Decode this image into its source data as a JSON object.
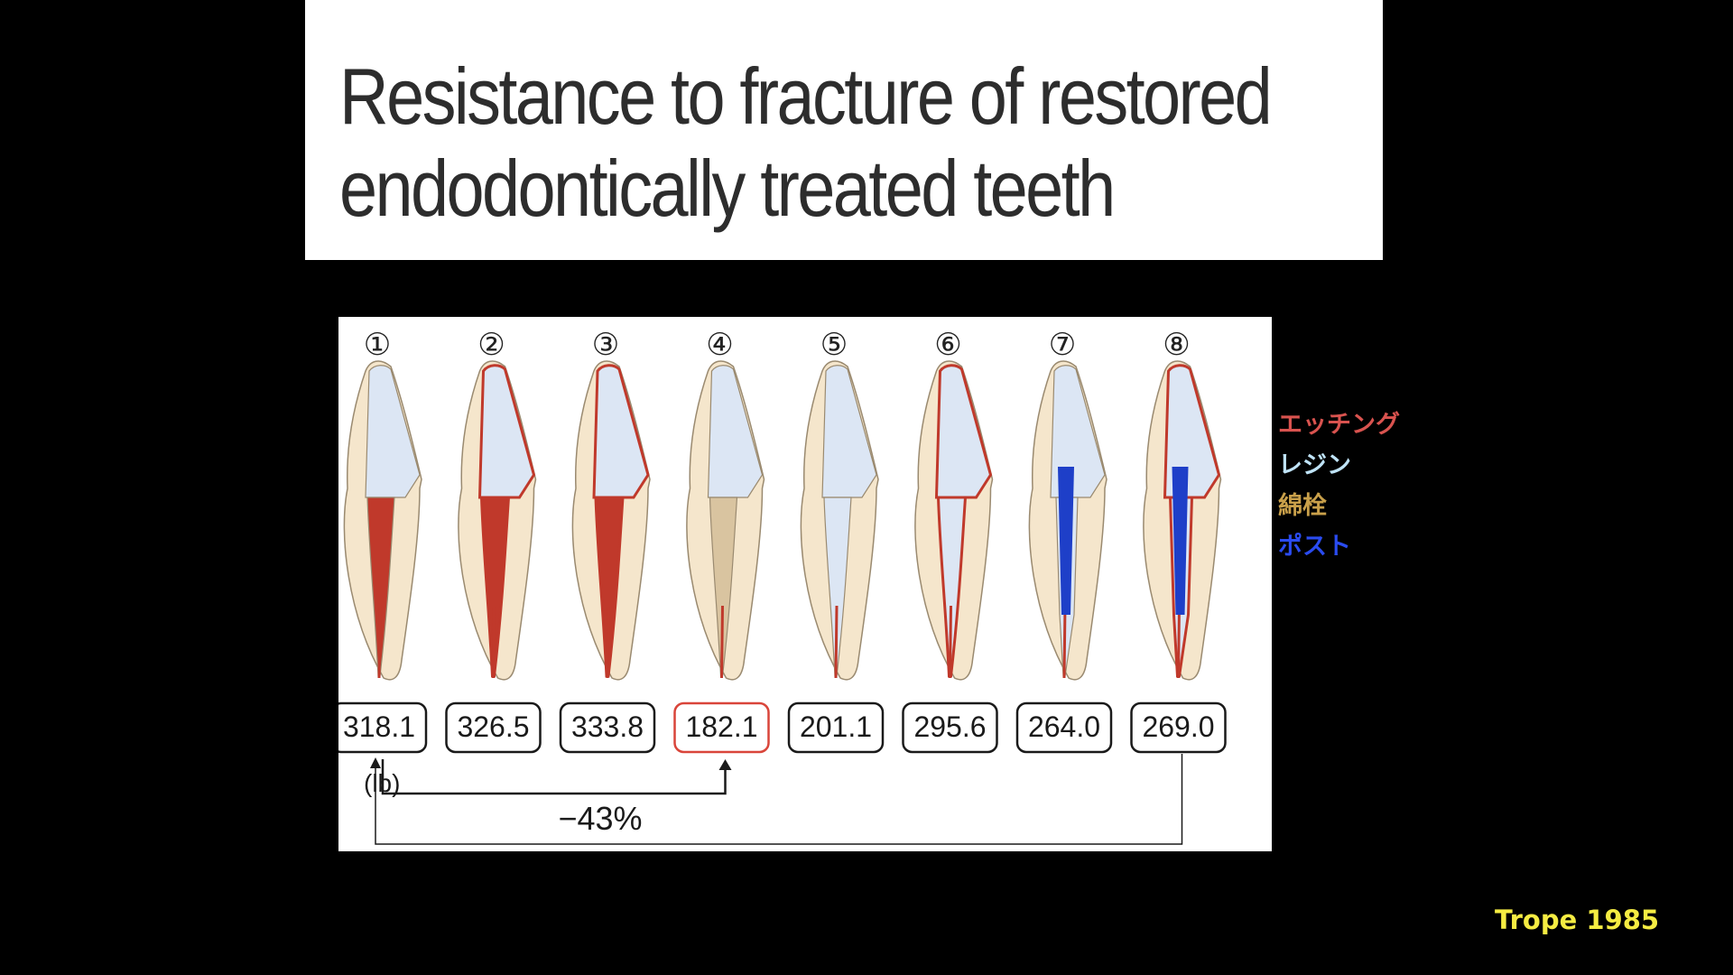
{
  "title": {
    "line1": "Resistance to fracture of restored",
    "line2": "endodontically treated teeth"
  },
  "figure": {
    "teeth": [
      {
        "number": "①",
        "value": "318.1",
        "highlight": false,
        "crown": "#dce6f4",
        "root": "#c0392b",
        "outline": false,
        "cotton": false,
        "post": false
      },
      {
        "number": "②",
        "value": "326.5",
        "highlight": false,
        "crown": "#dce6f4",
        "root": "#c0392b",
        "outline": true,
        "cotton": false,
        "post": false
      },
      {
        "number": "③",
        "value": "333.8",
        "highlight": false,
        "crown": "#dce6f4",
        "root": "#c0392b",
        "outline": true,
        "cotton": false,
        "post": false
      },
      {
        "number": "④",
        "value": "182.1",
        "highlight": true,
        "crown": "#dce6f4",
        "root": "#d9c4a0",
        "outline": false,
        "cotton": true,
        "post": false
      },
      {
        "number": "⑤",
        "value": "201.1",
        "highlight": false,
        "crown": "#dce6f4",
        "root": "#dce6f4",
        "outline": false,
        "cotton": false,
        "post": false
      },
      {
        "number": "⑥",
        "value": "295.6",
        "highlight": false,
        "crown": "#dce6f4",
        "root": "#dce6f4",
        "outline": true,
        "cotton": false,
        "post": false
      },
      {
        "number": "⑦",
        "value": "264.0",
        "highlight": false,
        "crown": "#dce6f4",
        "root": "#dce6f4",
        "outline": false,
        "cotton": false,
        "post": true
      },
      {
        "number": "⑧",
        "value": "269.0",
        "highlight": false,
        "crown": "#dce6f4",
        "root": "#dce6f4",
        "outline": true,
        "cotton": false,
        "post": true
      }
    ],
    "unit_label": "(lb)",
    "comparison_label": "−43%",
    "colors": {
      "dentin": "#f5e6cc",
      "dentin_edge": "#9a8a70",
      "red": "#c0392b",
      "post": "#1e3fc8",
      "highlight_border": "#d9453a"
    }
  },
  "legend": [
    {
      "label": "エッチング",
      "color": "#d9534f"
    },
    {
      "label": "レジン",
      "color": "#bfe3f7"
    },
    {
      "label": "綿栓",
      "color": "#c9a04a"
    },
    {
      "label": "ポスト",
      "color": "#2a4bf0"
    }
  ],
  "citation": {
    "text": "Trope 1985",
    "color": "#f5ec42"
  }
}
